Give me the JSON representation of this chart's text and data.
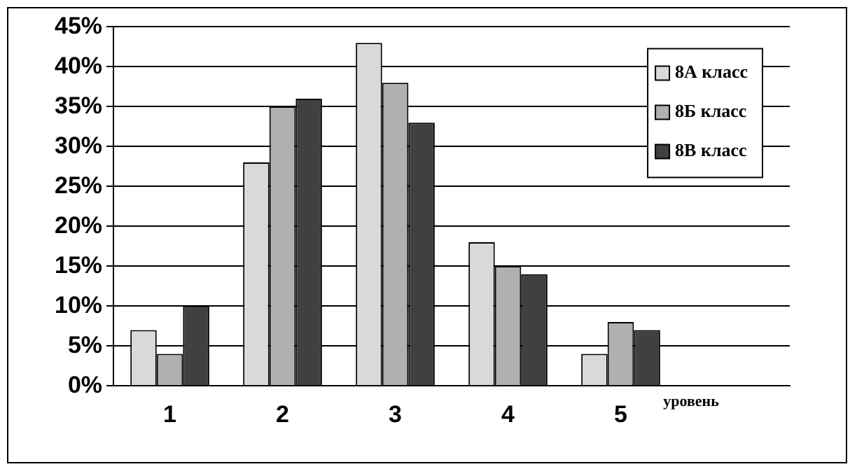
{
  "chart_data": {
    "type": "bar",
    "xlabel": "уровень",
    "categories": [
      "1",
      "2",
      "3",
      "4",
      "5",
      null
    ],
    "series": [
      {
        "name": "8А класс",
        "color": "#d9d9d9",
        "values": [
          7,
          28,
          43,
          18,
          4,
          null
        ]
      },
      {
        "name": "8Б класс",
        "color": "#b0b0b0",
        "values": [
          4,
          35,
          38,
          15,
          8,
          null
        ]
      },
      {
        "name": "8В класс",
        "color": "#404040",
        "values": [
          10,
          36,
          33,
          14,
          7,
          null
        ]
      }
    ],
    "ylim": [
      0,
      45
    ],
    "yticks": [
      {
        "value": 0,
        "label": "0%"
      },
      {
        "value": 5,
        "label": "5%"
      },
      {
        "value": 10,
        "label": "10%"
      },
      {
        "value": 15,
        "label": "15%"
      },
      {
        "value": 20,
        "label": "20%"
      },
      {
        "value": 25,
        "label": "25%"
      },
      {
        "value": 30,
        "label": "30%"
      },
      {
        "value": 35,
        "label": "35%"
      },
      {
        "value": 40,
        "label": "40%"
      },
      {
        "value": 45,
        "label": "45%"
      }
    ],
    "grid": "y",
    "legend": "top right"
  }
}
